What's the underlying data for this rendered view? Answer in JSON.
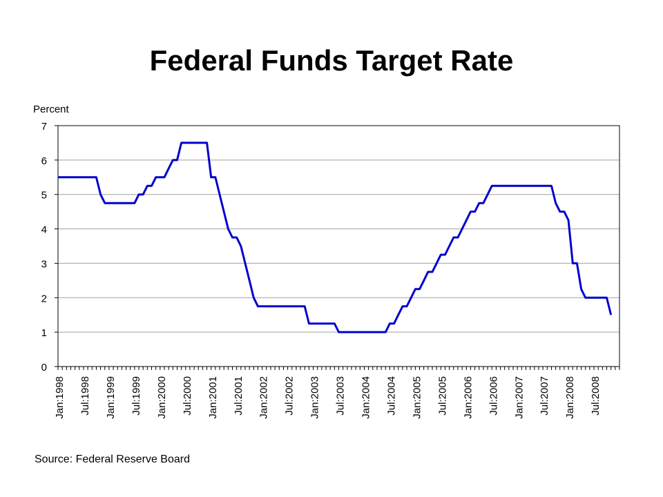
{
  "title": "Federal Funds Target Rate",
  "source": "Source:  Federal Reserve Board",
  "chart_data": {
    "type": "line",
    "title": "Federal Funds Target Rate",
    "ylabel": "Percent",
    "xlabel": "",
    "ylim": [
      0,
      7
    ],
    "yticks": [
      0,
      1,
      2,
      3,
      4,
      5,
      6,
      7
    ],
    "xlim": [
      "1998-01",
      "2008-12"
    ],
    "xtick_labels": [
      "Jan:1998",
      "Jul:1998",
      "Jan:1999",
      "Jul:1999",
      "Jan:2000",
      "Jul:2000",
      "Jan:2001",
      "Jul:2001",
      "Jan:2002",
      "Jul:2002",
      "Jan:2003",
      "Jul:2003",
      "Jan:2004",
      "Jul:2004",
      "Jan:2005",
      "Jul:2005",
      "Jan:2006",
      "Jul:2006",
      "Jan:2007",
      "Jul:2007",
      "Jan:2008",
      "Jul:2008"
    ],
    "grid": "horizontal",
    "legend": "none",
    "line_color": "#0000cc",
    "series": [
      {
        "x": [
          "1998-01",
          "1998-02",
          "1998-03",
          "1998-04",
          "1998-05",
          "1998-06",
          "1998-07",
          "1998-08",
          "1998-09",
          "1998-10",
          "1998-11",
          "1998-12",
          "1999-01",
          "1999-02",
          "1999-03",
          "1999-04",
          "1999-05",
          "1999-06",
          "1999-07",
          "1999-08",
          "1999-09",
          "1999-10",
          "1999-11",
          "1999-12",
          "2000-01",
          "2000-02",
          "2000-03",
          "2000-04",
          "2000-05",
          "2000-06",
          "2000-07",
          "2000-08",
          "2000-09",
          "2000-10",
          "2000-11",
          "2000-12",
          "2001-01",
          "2001-02",
          "2001-03",
          "2001-04",
          "2001-05",
          "2001-06",
          "2001-07",
          "2001-08",
          "2001-09",
          "2001-10",
          "2001-11",
          "2001-12",
          "2002-01",
          "2002-02",
          "2002-03",
          "2002-04",
          "2002-05",
          "2002-06",
          "2002-07",
          "2002-08",
          "2002-09",
          "2002-10",
          "2002-11",
          "2002-12",
          "2003-01",
          "2003-02",
          "2003-03",
          "2003-04",
          "2003-05",
          "2003-06",
          "2003-07",
          "2003-08",
          "2003-09",
          "2003-10",
          "2003-11",
          "2003-12",
          "2004-01",
          "2004-02",
          "2004-03",
          "2004-04",
          "2004-05",
          "2004-06",
          "2004-07",
          "2004-08",
          "2004-09",
          "2004-10",
          "2004-11",
          "2004-12",
          "2005-01",
          "2005-02",
          "2005-03",
          "2005-04",
          "2005-05",
          "2005-06",
          "2005-07",
          "2005-08",
          "2005-09",
          "2005-10",
          "2005-11",
          "2005-12",
          "2006-01",
          "2006-02",
          "2006-03",
          "2006-04",
          "2006-05",
          "2006-06",
          "2006-07",
          "2006-08",
          "2006-09",
          "2006-10",
          "2006-11",
          "2006-12",
          "2007-01",
          "2007-02",
          "2007-03",
          "2007-04",
          "2007-05",
          "2007-06",
          "2007-07",
          "2007-08",
          "2007-09",
          "2007-10",
          "2007-11",
          "2007-12",
          "2008-01",
          "2008-02",
          "2008-03",
          "2008-04",
          "2008-05",
          "2008-06",
          "2008-07",
          "2008-08",
          "2008-09",
          "2008-10",
          "2008-11"
        ],
        "values": [
          5.5,
          5.5,
          5.5,
          5.5,
          5.5,
          5.5,
          5.5,
          5.5,
          5.5,
          5.5,
          5.0,
          4.75,
          4.75,
          4.75,
          4.75,
          4.75,
          4.75,
          4.75,
          4.75,
          5.0,
          5.0,
          5.25,
          5.25,
          5.5,
          5.5,
          5.5,
          5.75,
          6.0,
          6.0,
          6.5,
          6.5,
          6.5,
          6.5,
          6.5,
          6.5,
          6.5,
          5.5,
          5.5,
          5.0,
          4.5,
          4.0,
          3.75,
          3.75,
          3.5,
          3.0,
          2.5,
          2.0,
          1.75,
          1.75,
          1.75,
          1.75,
          1.75,
          1.75,
          1.75,
          1.75,
          1.75,
          1.75,
          1.75,
          1.75,
          1.25,
          1.25,
          1.25,
          1.25,
          1.25,
          1.25,
          1.25,
          1.0,
          1.0,
          1.0,
          1.0,
          1.0,
          1.0,
          1.0,
          1.0,
          1.0,
          1.0,
          1.0,
          1.0,
          1.25,
          1.25,
          1.5,
          1.75,
          1.75,
          2.0,
          2.25,
          2.25,
          2.5,
          2.75,
          2.75,
          3.0,
          3.25,
          3.25,
          3.5,
          3.75,
          3.75,
          4.0,
          4.25,
          4.5,
          4.5,
          4.75,
          4.75,
          5.0,
          5.25,
          5.25,
          5.25,
          5.25,
          5.25,
          5.25,
          5.25,
          5.25,
          5.25,
          5.25,
          5.25,
          5.25,
          5.25,
          5.25,
          5.25,
          4.75,
          4.5,
          4.5,
          4.25,
          3.0,
          3.0,
          2.25,
          2.0,
          2.0,
          2.0,
          2.0,
          2.0,
          2.0,
          1.5
        ]
      }
    ]
  }
}
